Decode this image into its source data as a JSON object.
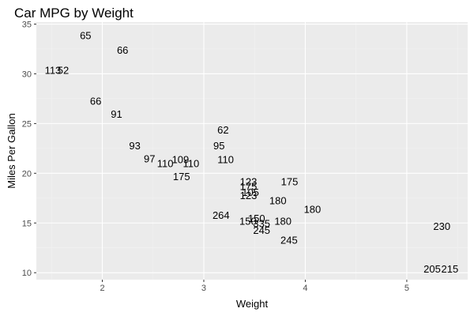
{
  "chart_data": {
    "type": "scatter",
    "title": "Car MPG by Weight",
    "xlabel": "Weight",
    "ylabel": "Miles Per Gallon",
    "xlim": [
      1.35,
      5.6
    ],
    "ylim": [
      9.3,
      35.2
    ],
    "x_ticks": [
      2,
      3,
      4,
      5
    ],
    "y_ticks": [
      10,
      15,
      20,
      25,
      30,
      35
    ],
    "grid": true,
    "legend": "none",
    "colors": {
      "panel": "#ebebeb",
      "grid_major": "#ffffff",
      "grid_minor": "#f2f2f2",
      "text": "#000000",
      "tick": "#4d4d4d"
    },
    "points": [
      {
        "x": 1.835,
        "y": 33.9,
        "label": "65"
      },
      {
        "x": 2.2,
        "y": 32.4,
        "label": "66"
      },
      {
        "x": 1.513,
        "y": 30.4,
        "label": "113"
      },
      {
        "x": 1.615,
        "y": 30.4,
        "label": "52"
      },
      {
        "x": 1.935,
        "y": 27.3,
        "label": "66"
      },
      {
        "x": 2.14,
        "y": 26.0,
        "label": "91"
      },
      {
        "x": 3.19,
        "y": 24.4,
        "label": "62"
      },
      {
        "x": 2.32,
        "y": 22.8,
        "label": "93"
      },
      {
        "x": 3.15,
        "y": 22.8,
        "label": "95"
      },
      {
        "x": 2.465,
        "y": 21.5,
        "label": "97"
      },
      {
        "x": 2.62,
        "y": 21.0,
        "label": "110"
      },
      {
        "x": 2.77,
        "y": 21.4,
        "label": "109"
      },
      {
        "x": 2.875,
        "y": 21.0,
        "label": "110"
      },
      {
        "x": 3.215,
        "y": 21.4,
        "label": "110"
      },
      {
        "x": 2.78,
        "y": 19.7,
        "label": "175"
      },
      {
        "x": 3.44,
        "y": 19.2,
        "label": "123"
      },
      {
        "x": 3.44,
        "y": 18.7,
        "label": "175"
      },
      {
        "x": 3.46,
        "y": 18.1,
        "label": "105"
      },
      {
        "x": 3.44,
        "y": 17.8,
        "label": "123"
      },
      {
        "x": 3.845,
        "y": 19.2,
        "label": "175"
      },
      {
        "x": 3.73,
        "y": 17.3,
        "label": "180"
      },
      {
        "x": 4.07,
        "y": 16.4,
        "label": "180"
      },
      {
        "x": 3.17,
        "y": 15.8,
        "label": "264"
      },
      {
        "x": 3.435,
        "y": 15.2,
        "label": "150"
      },
      {
        "x": 3.52,
        "y": 15.5,
        "label": "150"
      },
      {
        "x": 3.57,
        "y": 15.0,
        "label": "335"
      },
      {
        "x": 3.78,
        "y": 15.2,
        "label": "180"
      },
      {
        "x": 3.57,
        "y": 14.3,
        "label": "245"
      },
      {
        "x": 3.84,
        "y": 13.3,
        "label": "245"
      },
      {
        "x": 5.345,
        "y": 14.7,
        "label": "230"
      },
      {
        "x": 5.25,
        "y": 10.4,
        "label": "205"
      },
      {
        "x": 5.424,
        "y": 10.4,
        "label": "215"
      }
    ]
  }
}
